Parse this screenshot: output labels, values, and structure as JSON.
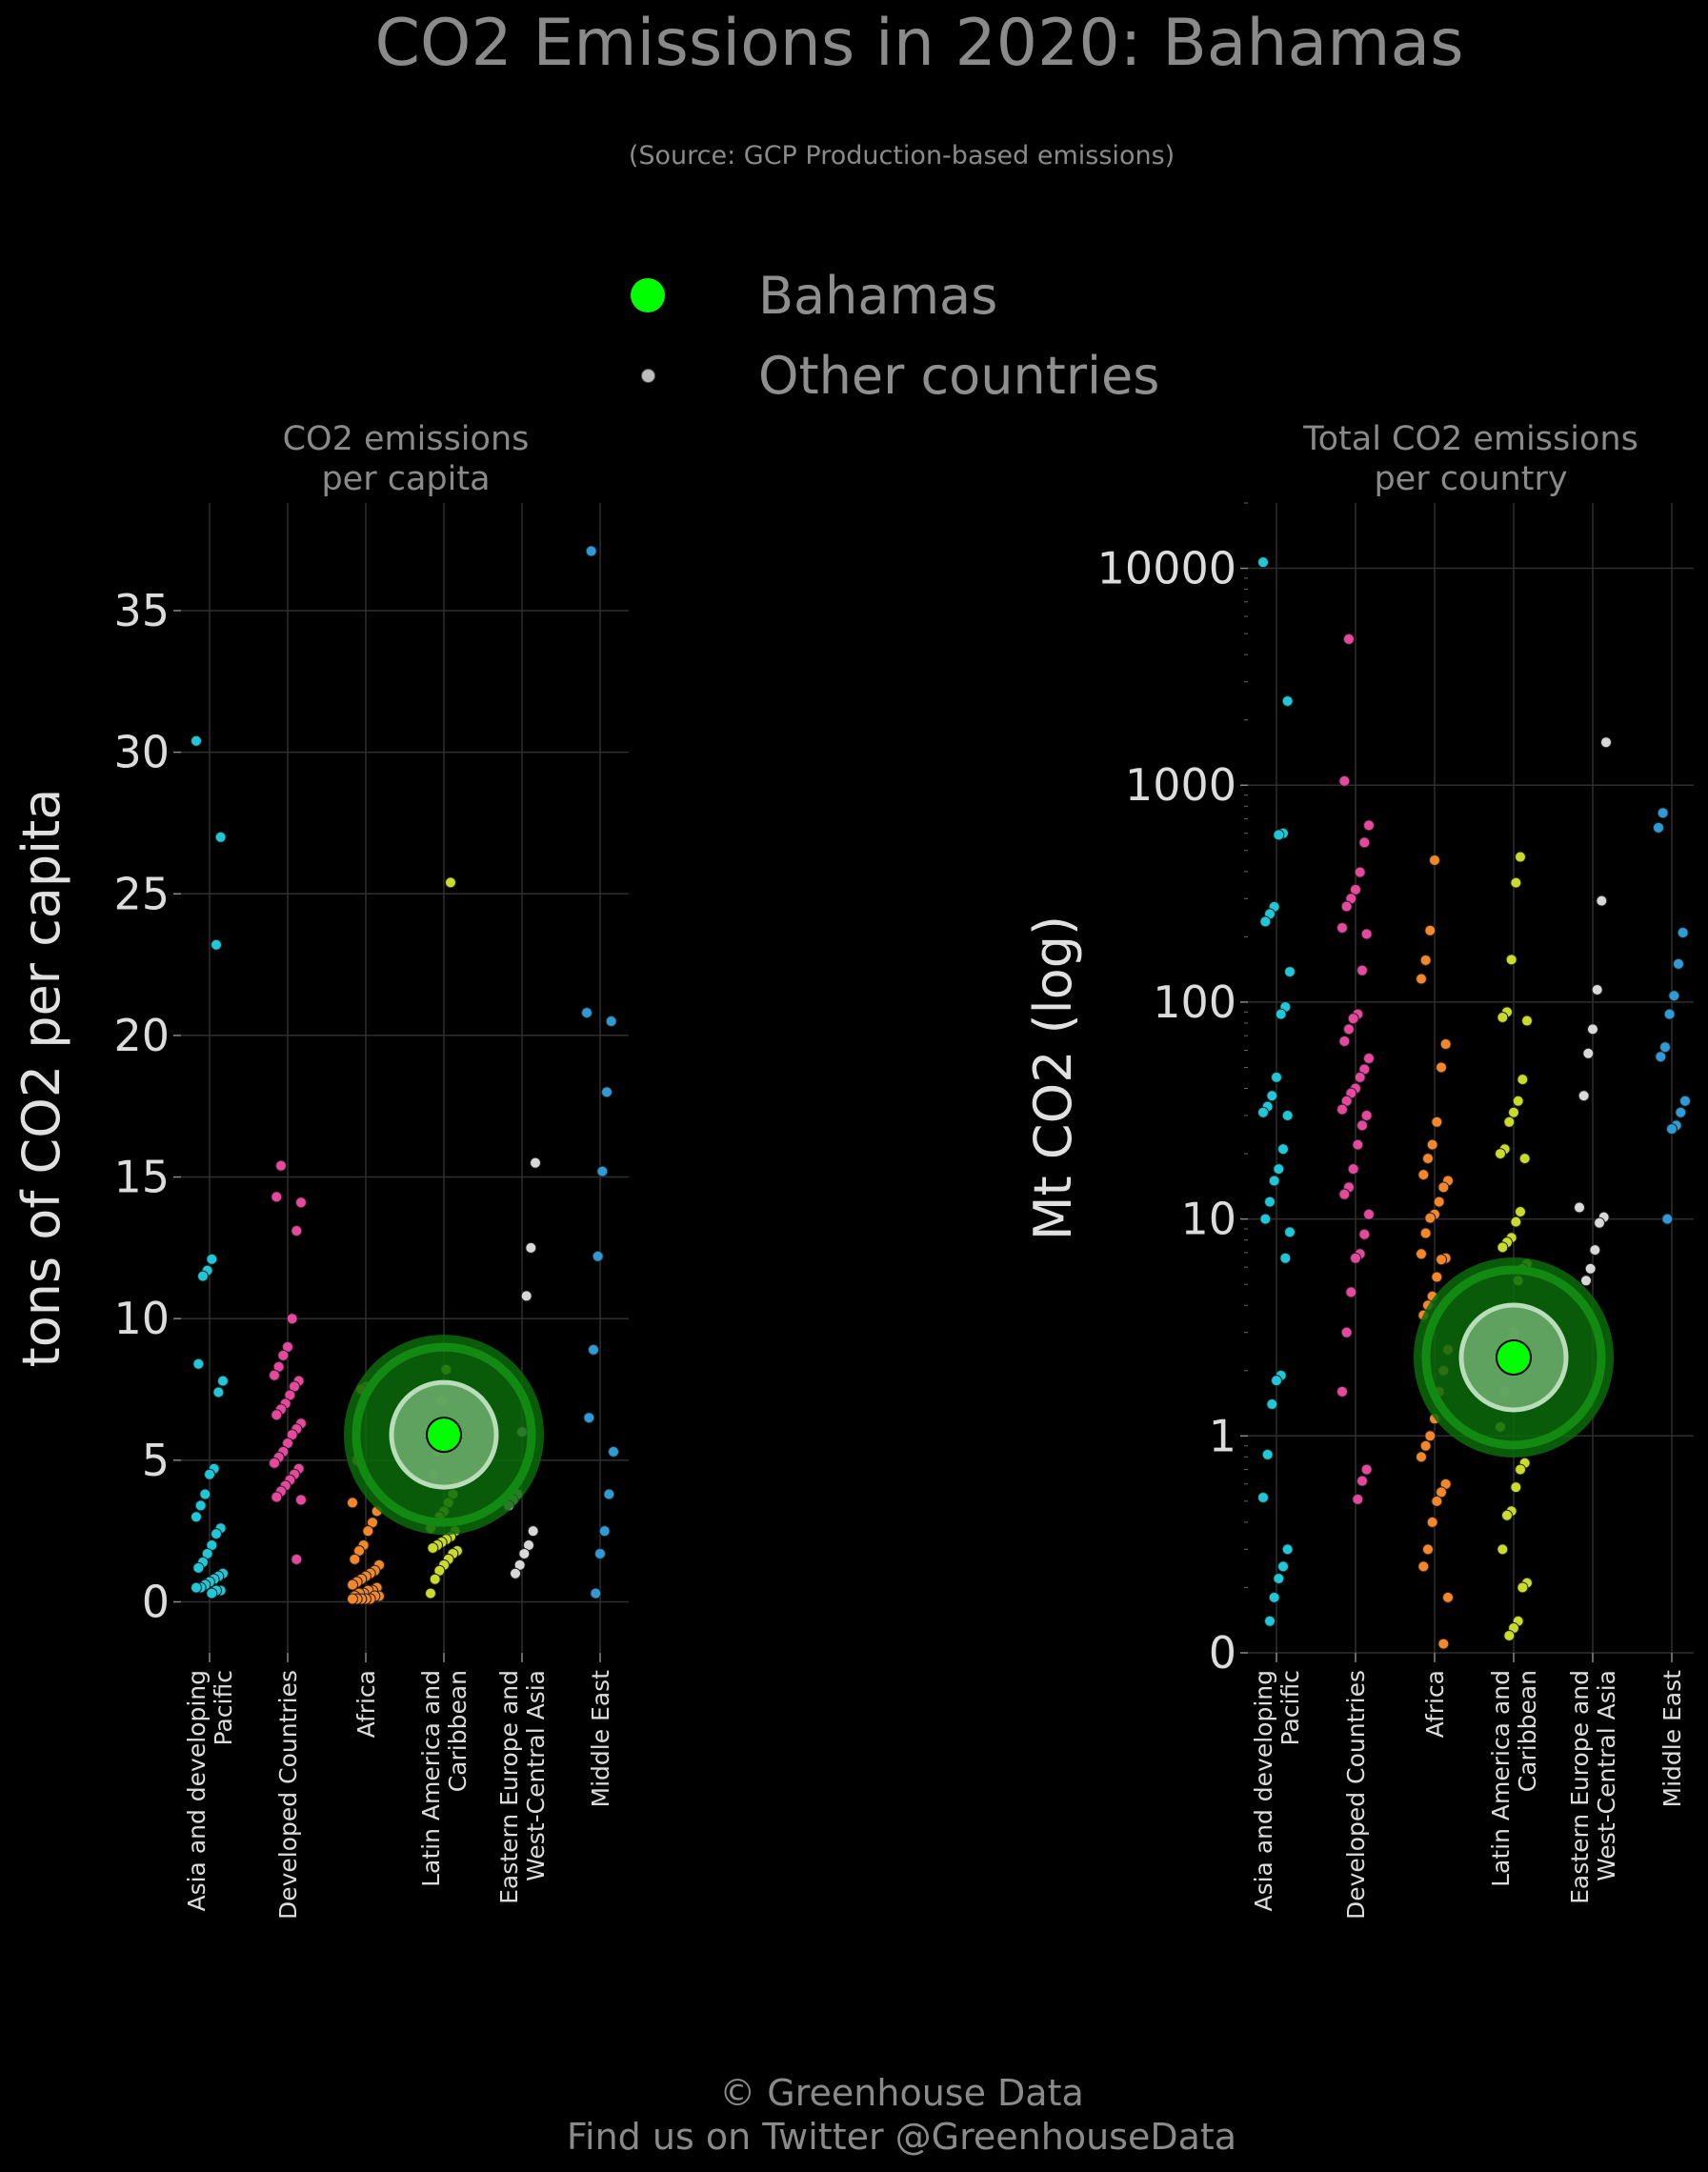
{
  "title": "CO2 Emissions in 2020: Bahamas",
  "subtitle": "(Source: GCP Production-based emissions)",
  "legend": {
    "highlight_label": "Bahamas",
    "others_label": "Other countries",
    "highlight_color": "#00ff00",
    "others_color": "#bdbdbd"
  },
  "footer": {
    "line1": "© Greenhouse Data",
    "line2": "Find us on Twitter @GreenhouseData"
  },
  "colors": {
    "Asia and developing Pacific": "#1ec8d8",
    "Developed Countries": "#e8479e",
    "Africa": "#f5862a",
    "Latin America and Caribbean": "#c9dc2a",
    "Eastern Europe and West-Central Asia": "#d8d8d8",
    "Middle East": "#2e9ad6"
  },
  "chart_data": [
    {
      "type": "scatter",
      "title": "CO2 emissions\nper capita",
      "ylabel": "tons of CO2 per capita",
      "yscale": "linear",
      "ylim": [
        -1.8,
        38.8
      ],
      "yticks": [
        0,
        5,
        10,
        15,
        20,
        25,
        30,
        35
      ],
      "yticklabels": [
        "0",
        "5",
        "10",
        "15",
        "20",
        "25",
        "30",
        "35"
      ],
      "categories": [
        "Asia and developing\nPacific",
        "Developed Countries",
        "Africa",
        "Latin America and\nCaribbean",
        "Eastern Europe and\nWest-Central Asia",
        "Middle East"
      ],
      "highlight": {
        "name": "Bahamas",
        "category_index": 3,
        "value": 5.9
      },
      "series": [
        {
          "name": "Asia and developing Pacific",
          "values": [
            30.4,
            27.0,
            23.2,
            12.1,
            11.7,
            11.5,
            8.4,
            7.8,
            7.4,
            4.7,
            4.5,
            3.8,
            3.4,
            3.0,
            2.6,
            2.4,
            2.0,
            1.7,
            1.4,
            1.2,
            1.0,
            0.9,
            0.8,
            0.7,
            0.6,
            0.5,
            0.5,
            0.4,
            0.4,
            0.3
          ]
        },
        {
          "name": "Developed Countries",
          "values": [
            15.4,
            14.3,
            14.1,
            13.1,
            10.0,
            9.0,
            8.7,
            8.3,
            8.0,
            7.8,
            7.6,
            7.3,
            7.0,
            6.8,
            6.6,
            6.3,
            6.1,
            5.9,
            5.6,
            5.3,
            5.1,
            4.9,
            4.7,
            4.5,
            4.3,
            4.1,
            3.9,
            3.7,
            3.6,
            1.5
          ]
        },
        {
          "name": "Africa",
          "values": [
            7.6,
            7.5,
            5.0,
            3.5,
            3.2,
            2.8,
            2.5,
            2.0,
            1.8,
            1.5,
            1.3,
            1.1,
            1.0,
            0.9,
            0.8,
            0.7,
            0.6,
            0.5,
            0.4,
            0.4,
            0.3,
            0.3,
            0.2,
            0.2,
            0.2,
            0.1,
            0.1,
            0.1,
            0.1,
            0.1
          ]
        },
        {
          "name": "Latin America and Caribbean",
          "values": [
            25.4,
            8.2,
            7.1,
            5.3,
            4.5,
            4.2,
            3.8,
            3.5,
            3.2,
            3.0,
            2.8,
            2.6,
            2.5,
            2.3,
            2.2,
            2.1,
            2.0,
            1.9,
            1.8,
            1.7,
            1.5,
            1.3,
            1.1,
            0.8,
            0.3
          ]
        },
        {
          "name": "Eastern Europe and West-Central Asia",
          "values": [
            15.5,
            12.5,
            10.8,
            6.0,
            3.8,
            3.6,
            3.4,
            2.5,
            2.0,
            1.7,
            1.3,
            1.0
          ]
        },
        {
          "name": "Middle East",
          "values": [
            37.1,
            20.8,
            20.5,
            18.0,
            15.2,
            12.2,
            8.9,
            6.5,
            5.3,
            3.8,
            2.5,
            1.7,
            0.3
          ]
        }
      ]
    },
    {
      "type": "scatter",
      "title": "Total CO2 emissions\nper country",
      "ylabel": "Mt CO2 (log)",
      "yscale": "log",
      "ylim": [
        0.1,
        20000
      ],
      "yticks": [
        0.1,
        1,
        10,
        100,
        1000,
        10000
      ],
      "yticklabels": [
        "0",
        "1",
        "10",
        "100",
        "1000",
        "10000"
      ],
      "categories": [
        "Asia and developing\nPacific",
        "Developed Countries",
        "Africa",
        "Latin America and\nCaribbean",
        "Eastern Europe and\nWest-Central Asia",
        "Middle East"
      ],
      "highlight": {
        "name": "Bahamas",
        "category_index": 3,
        "value": 2.3
      },
      "series": [
        {
          "name": "Asia and developing Pacific",
          "values": [
            10667,
            2442,
            600,
            590,
            275,
            255,
            235,
            138,
            95,
            88,
            45,
            37,
            33,
            31,
            30,
            21,
            17,
            15,
            12,
            10,
            8.7,
            6.6,
            1.9,
            1.8,
            1.4,
            0.82,
            0.52,
            0.3,
            0.25,
            0.22,
            0.18,
            0.14
          ]
        },
        {
          "name": "Developed Countries",
          "values": [
            4713,
            1045,
            653,
            544,
            397,
            330,
            300,
            276,
            220,
            206,
            140,
            88,
            84,
            75,
            66,
            55,
            49,
            45,
            40,
            38,
            35,
            32,
            30,
            27,
            22,
            17,
            14,
            13,
            10.5,
            8.5,
            6.9,
            6.6,
            4.6,
            3.0,
            1.6,
            0.7,
            0.62,
            0.51
          ]
        },
        {
          "name": "Africa",
          "values": [
            451,
            214,
            156,
            128,
            64,
            50,
            28,
            22,
            19,
            16,
            15,
            14,
            12,
            10.5,
            10.1,
            8.6,
            6.9,
            6.6,
            6.5,
            5.4,
            4.4,
            4.0,
            3.6,
            2.5,
            2.0,
            1.6,
            1.2,
            1.0,
            0.9,
            0.8,
            0.6,
            0.55,
            0.5,
            0.4,
            0.3,
            0.25,
            0.18,
            0.11
          ]
        },
        {
          "name": "Latin America and Caribbean",
          "values": [
            467,
            355,
            157,
            90,
            85,
            82,
            44,
            35,
            31,
            28,
            21,
            20,
            19,
            10.8,
            9.7,
            8.2,
            7.8,
            7.4,
            6.2,
            5.9,
            5.2,
            3.0,
            2.7,
            1.6,
            1.1,
            0.75,
            0.7,
            0.58,
            0.45,
            0.43,
            0.3,
            0.21,
            0.2,
            0.14,
            0.13,
            0.12
          ]
        },
        {
          "name": "Eastern Europe and West-Central Asia",
          "values": [
            1577,
            293,
            114,
            75,
            58,
            37,
            11.3,
            10.2,
            9.6,
            7.2,
            5.9,
            5.2
          ]
        },
        {
          "name": "Middle East",
          "values": [
            745,
            637,
            209,
            150,
            107,
            88,
            62,
            56,
            35,
            31,
            27,
            26,
            10.0
          ]
        }
      ]
    }
  ]
}
